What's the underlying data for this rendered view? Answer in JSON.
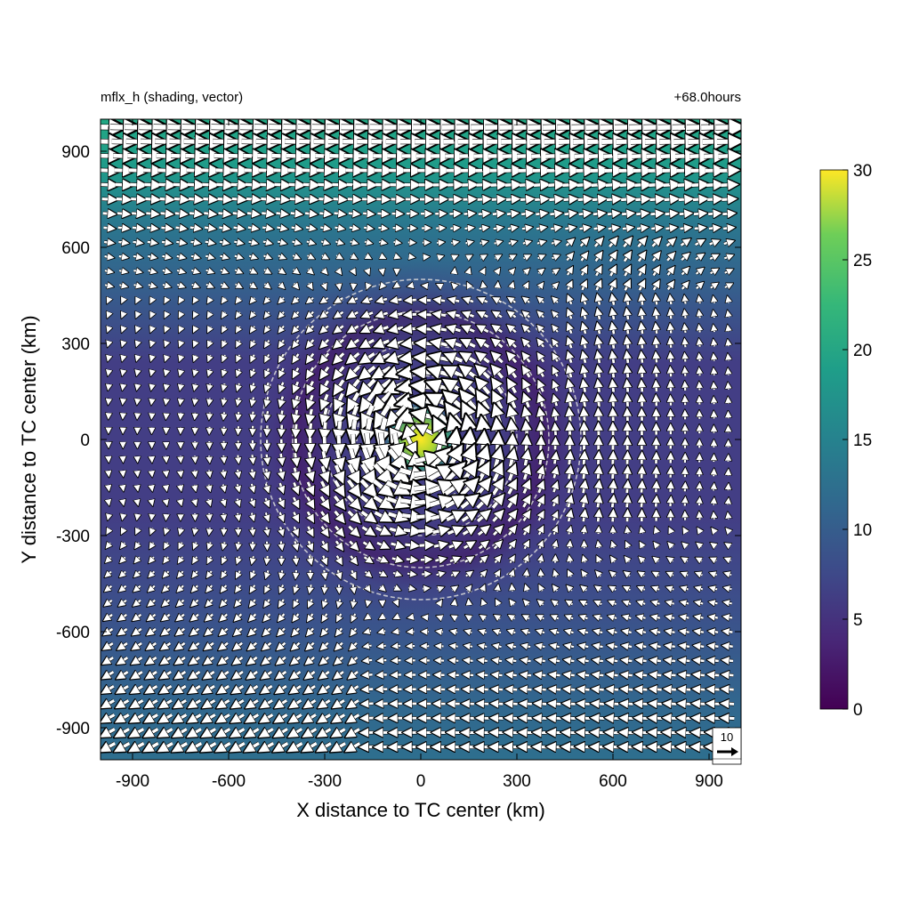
{
  "chart_data": {
    "type": "heatmap",
    "title_left": "mflx_h (shading, vector)",
    "title_right": "+68.0hours",
    "xlabel": "X distance to TC center (km)",
    "ylabel": "Y distance to TC center (km)",
    "xlim": [
      -1000,
      1000
    ],
    "ylim": [
      -1000,
      1000
    ],
    "xticks": [
      "-900",
      "-600",
      "-300",
      "0",
      "300",
      "600",
      "900"
    ],
    "xtick_values": [
      -900,
      -600,
      -300,
      0,
      300,
      600,
      900
    ],
    "yticks": [
      "900",
      "600",
      "300",
      "0",
      "-300",
      "-600",
      "-900"
    ],
    "ytick_values": [
      900,
      600,
      300,
      0,
      -300,
      -600,
      -900
    ],
    "colorbar": {
      "min": 0,
      "max": 30,
      "ticks": [
        "30",
        "25",
        "20",
        "15",
        "10",
        "5",
        "0"
      ],
      "tick_values": [
        30,
        25,
        20,
        15,
        10,
        5,
        0
      ],
      "colormap": "viridis"
    },
    "shading_description": "Horizontal moisture flux magnitude; peak near 30 at TC center, 15-20 along the northern edge, 8-12 along the southern and eastern edges, minima 1-3 around radius 300-450 km",
    "center_max": 30,
    "rings_km": [
      100,
      200,
      300,
      400,
      500
    ],
    "reference_vector": {
      "label": "10",
      "magnitude": 10
    },
    "vector_field": "cyclonic circulation around TC center with strong westerly flow in the north and easterly flow in the south"
  }
}
